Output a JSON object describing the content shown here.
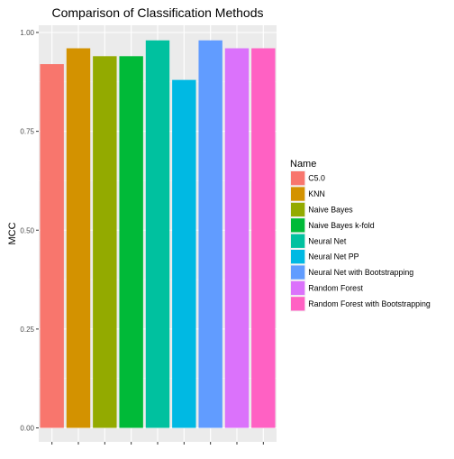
{
  "chart_data": {
    "type": "bar",
    "title": "Comparison of Classification Methods",
    "xlabel": "",
    "ylabel": "MCC",
    "ylim": [
      0,
      1.0
    ],
    "yticks": [
      "0.00",
      "0.25",
      "0.50",
      "0.75",
      "1.00"
    ],
    "ytick_values": [
      0,
      0.25,
      0.5,
      0.75,
      1.0
    ],
    "grid": true,
    "legend": {
      "title": "Name",
      "placement": "right"
    },
    "categories": [
      "C5.0",
      "KNN",
      "Naive Bayes",
      "Naive Bayes k-fold",
      "Neural Net",
      "Neural Net PP",
      "Neural Net with Bootstrapping",
      "Random Forest",
      "Random Forest with Bootstrapping"
    ],
    "values": [
      0.92,
      0.96,
      0.94,
      0.94,
      0.98,
      0.88,
      0.98,
      0.96,
      0.96
    ],
    "colors": [
      "#F8766D",
      "#D39200",
      "#93AA00",
      "#00BA38",
      "#00C19F",
      "#00B9E3",
      "#619CFF",
      "#DB72FB",
      "#FF61C3"
    ]
  }
}
